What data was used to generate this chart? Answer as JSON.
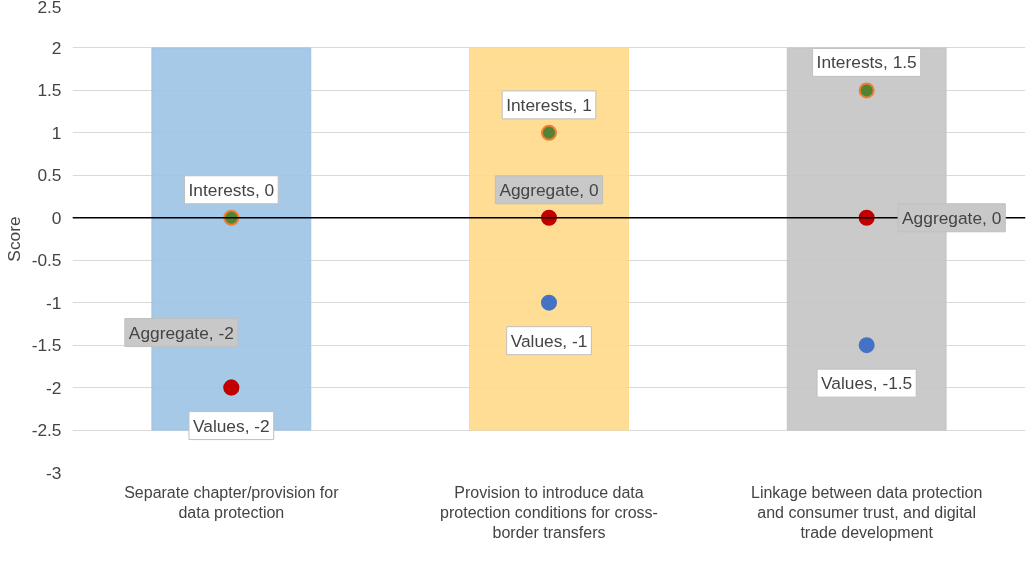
{
  "chart_data": {
    "type": "bar",
    "ylabel": "Score",
    "categories": [
      "Separate chapter/provision for data protection",
      "Provision to introduce data protection conditions for cross-border transfers",
      "Linkage between data protection and consumer trust, and digital trade development"
    ],
    "series": [
      {
        "values": [
          4.5,
          4.5,
          4.5
        ],
        "base": [
          -2.5,
          -2.5,
          -2.5
        ],
        "colors": [
          "#9dc3e6",
          "#ffd98a",
          "#c4c4c4"
        ]
      },
      {
        "type": "scatter",
        "color": "#548235",
        "values": [
          0,
          1,
          1.5
        ],
        "value_labels": [
          "Interests, 0",
          "Interests, 1",
          "Interests, 1.5"
        ]
      },
      {
        "type": "scatter",
        "color": "#4472c4",
        "values": [
          -2,
          -1,
          -1.5
        ],
        "value_labels": [
          "Values, -2",
          "Values, -1",
          "Values, -1.5"
        ]
      },
      {
        "type": "scatter",
        "color": "#c00000",
        "values": [
          -2,
          0,
          0
        ],
        "value_labels": [
          "Aggregate, -2",
          "Aggregate, 0",
          "Aggregate, 0"
        ]
      }
    ],
    "ylim": [
      -3,
      2.5
    ],
    "yticks": [
      -3,
      -2.5,
      -2,
      -1.5,
      -1,
      -0.5,
      0,
      0.5,
      1,
      1.5,
      2,
      2.5
    ],
    "ref_lines": [
      {
        "axis": "y",
        "value": 0,
        "color": "#000000"
      }
    ],
    "grid": "y",
    "marker": "circle"
  }
}
